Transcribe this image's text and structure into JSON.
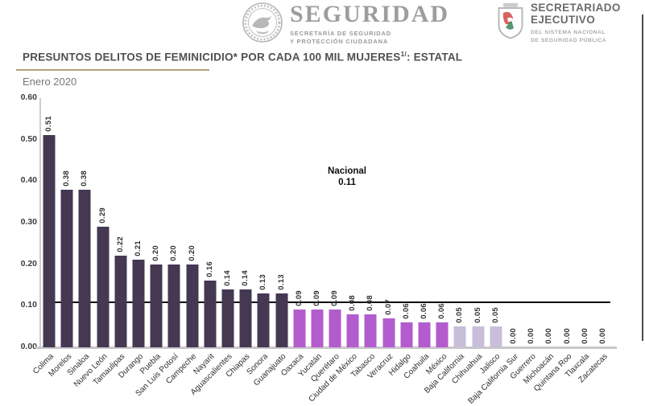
{
  "header": {
    "brand": "SEGURIDAD",
    "brand_sub1": "SECRETARÍA DE SEGURIDAD",
    "brand_sub2": "Y PROTECCIÓN CIUDADANA",
    "right_title1": "SECRETARIADO",
    "right_title2": "EJECUTIVO",
    "right_sub1": "DEL SISTEMA NACIONAL",
    "right_sub2": "DE SEGURIDAD PÚBLICA"
  },
  "title": {
    "main": "PRESUNTOS DELITOS DE FEMINICIDIO* POR CADA 100 MIL MUJERES",
    "superscript": "1/",
    "suffix": ": ESTATAL",
    "subtitle": "Enero 2020"
  },
  "chart_data": {
    "type": "bar",
    "title": "PRESUNTOS DELITOS DE FEMINICIDIO* POR CADA 100 MIL MUJERES 1/: ESTATAL",
    "period": "Enero 2020",
    "categories": [
      "Colima",
      "Morelos",
      "Sinaloa",
      "Nuevo León",
      "Tamaulipas",
      "Durango",
      "Puebla",
      "San Luis Potosí",
      "Campeche",
      "Nayarit",
      "Aguascalientes",
      "Chiapas",
      "Sonora",
      "Guanajuato",
      "Oaxaca",
      "Yucatán",
      "Querétaro",
      "Ciudad de México",
      "Tabasco",
      "Veracruz",
      "Hidalgo",
      "Coahuila",
      "México",
      "Baja California",
      "Chihuahua",
      "Jalisco",
      "Baja California Sur",
      "Guerrero",
      "Michoacán",
      "Quintana Roo",
      "Tlaxcala",
      "Zacatecas"
    ],
    "values": [
      0.51,
      0.38,
      0.38,
      0.29,
      0.22,
      0.21,
      0.2,
      0.2,
      0.2,
      0.16,
      0.14,
      0.14,
      0.13,
      0.13,
      0.09,
      0.09,
      0.09,
      0.08,
      0.08,
      0.07,
      0.06,
      0.06,
      0.06,
      0.05,
      0.05,
      0.05,
      0.0,
      0.0,
      0.0,
      0.0,
      0.0,
      0.0
    ],
    "bar_colors": [
      "#443853",
      "#443853",
      "#443853",
      "#443853",
      "#443853",
      "#443853",
      "#443853",
      "#443853",
      "#443853",
      "#443853",
      "#443853",
      "#443853",
      "#443853",
      "#443853",
      "#B25CCE",
      "#B25CCE",
      "#B25CCE",
      "#B25CCE",
      "#B25CCE",
      "#B25CCE",
      "#B25CCE",
      "#B25CCE",
      "#B25CCE",
      "#C8BEDA",
      "#C8BEDA",
      "#C8BEDA",
      "#C8BEDA",
      "#C8BEDA",
      "#C8BEDA",
      "#C8BEDA",
      "#C8BEDA",
      "#C8BEDA"
    ],
    "national": {
      "label": "Nacional",
      "value": 0.11,
      "value_text": "0.11"
    },
    "ylim": [
      0,
      0.6
    ],
    "yticks": [
      "0.00",
      "0.10",
      "0.20",
      "0.30",
      "0.40",
      "0.50",
      "0.60"
    ],
    "grid": false,
    "legend": "none",
    "value_labels": "rotated-90-above-bars",
    "category_labels": "rotated-45"
  },
  "colors": {
    "bar_above_national": "#443853",
    "bar_below_national": "#B25CCE",
    "bar_lowest": "#C8BEDA",
    "national_line": "#0c0c0c",
    "title_rule": "#b3a17e"
  }
}
